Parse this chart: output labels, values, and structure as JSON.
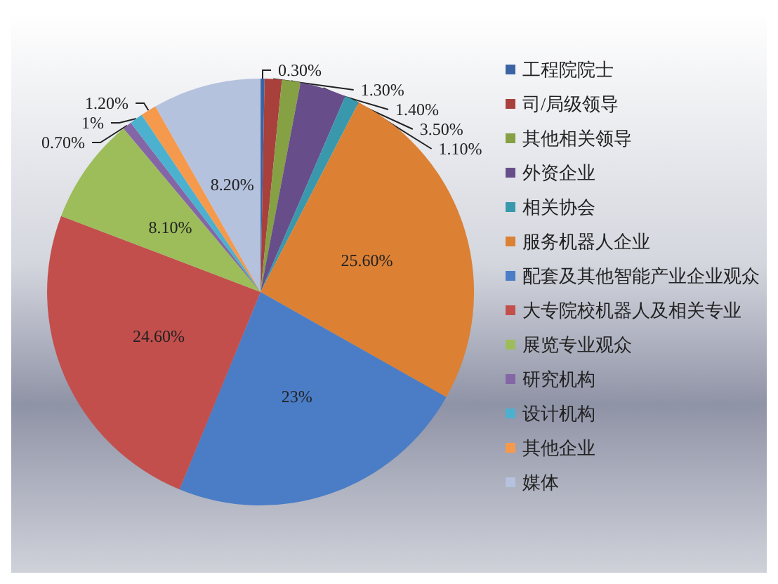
{
  "chart_data": {
    "type": "pie",
    "categories": [
      "工程院院士",
      "司/局级领导",
      "其他相关领导",
      "外资企业",
      "相关协会",
      "服务机器人企业",
      "配套及其他智能产业企业观众",
      "大专院校机器人及相关专业",
      "展览专业观众",
      "研究机构",
      "设计机构",
      "其他企业",
      "媒体"
    ],
    "values": [
      0.3,
      1.3,
      1.4,
      3.5,
      1.1,
      25.6,
      23,
      24.6,
      8.1,
      0.7,
      1,
      1.2,
      8.2
    ],
    "value_labels": [
      "0.30%",
      "1.30%",
      "1.40%",
      "3.50%",
      "1.10%",
      "25.60%",
      "23%",
      "24.60%",
      "8.10%",
      "0.70%",
      "1%",
      "1.20%",
      "8.20%"
    ],
    "colors": [
      "#3b64a4",
      "#a8403c",
      "#86a044",
      "#674e8a",
      "#3a98ac",
      "#dc8034",
      "#4a7dc6",
      "#c34f4c",
      "#9cbd5a",
      "#8466a6",
      "#4cb1cf",
      "#f59a4c",
      "#b4c2de"
    ],
    "legend": "right"
  }
}
